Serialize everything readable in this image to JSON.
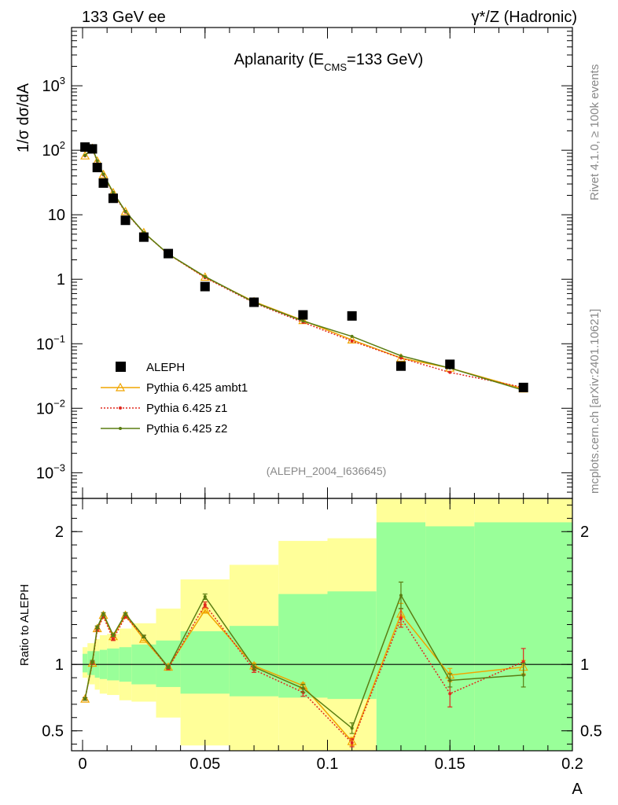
{
  "header": {
    "left": "133 GeV ee",
    "right": "γ*/Z (Hadronic)"
  },
  "side_labels": {
    "rivet": "Rivet 4.1.0, ≥ 100k events",
    "mcplots": "mcplots.cern.ch [arXiv:2401.10621]"
  },
  "colors": {
    "data": "#000000",
    "ambt1": "#f0a500",
    "z1": "#e0281e",
    "z2": "#5a7d12",
    "band_outer": "#ffff99",
    "band_inner": "#99ff99"
  },
  "chart_data": [
    {
      "type": "line",
      "title": "Aplanarity (E",
      "title_sub": "CMS",
      "title_end": "=133 GeV)",
      "ylabel": "1/σ  dσ/dA",
      "yscale": "log",
      "ylim": [
        0.0004,
        8000
      ],
      "xlim": [
        -0.0045,
        0.2
      ],
      "analysis_id": "(ALEPH_2004_I636645)",
      "y_ticks": [
        {
          "value": 0.001,
          "label": "10",
          "exp": "−3"
        },
        {
          "value": 0.01,
          "label": "10",
          "exp": "−2"
        },
        {
          "value": 0.1,
          "label": "10",
          "exp": "−1"
        },
        {
          "value": 1,
          "label": "1",
          "exp": ""
        },
        {
          "value": 10,
          "label": "10",
          "exp": ""
        },
        {
          "value": 100,
          "label": "10",
          "exp": "2"
        },
        {
          "value": 1000,
          "label": "10",
          "exp": "3"
        }
      ],
      "legend": [
        {
          "key": "data",
          "label": "ALEPH"
        },
        {
          "key": "ambt1",
          "label": "Pythia 6.425 ambt1"
        },
        {
          "key": "z1",
          "label": "Pythia 6.425 z1"
        },
        {
          "key": "z2",
          "label": "Pythia 6.425 z2"
        }
      ],
      "x": [
        0.001,
        0.004,
        0.006,
        0.0085,
        0.0125,
        0.0175,
        0.025,
        0.035,
        0.05,
        0.07,
        0.09,
        0.11,
        0.13,
        0.15,
        0.18
      ],
      "series": [
        {
          "name": "ALEPH",
          "key": "data",
          "values": [
            112,
            105,
            54,
            31,
            18,
            8.2,
            4.5,
            2.5,
            0.77,
            0.44,
            0.28,
            0.27,
            0.045,
            0.048,
            0.021
          ]
        },
        {
          "name": "Pythia 6.425 ambt1",
          "key": "ambt1",
          "values": [
            82,
            107,
            68,
            42,
            22,
            11.2,
            5.3,
            2.45,
            1.08,
            0.45,
            0.23,
            0.115,
            0.06,
            0.042,
            0.02
          ]
        },
        {
          "name": "Pythia 6.425 z1",
          "key": "z1",
          "values": [
            82,
            107,
            67,
            41.5,
            21.5,
            11.0,
            5.25,
            2.45,
            1.06,
            0.43,
            0.215,
            0.11,
            0.06,
            0.036,
            0.021
          ]
        },
        {
          "name": "Pythia 6.425 z2",
          "key": "z2",
          "values": [
            83,
            108,
            68.5,
            42.5,
            22.2,
            11.3,
            5.3,
            2.46,
            1.1,
            0.44,
            0.225,
            0.13,
            0.065,
            0.042,
            0.019
          ]
        }
      ]
    },
    {
      "type": "line",
      "title": "",
      "ylabel": "Ratio to ALEPH",
      "xlabel": "A",
      "yscale": "linear",
      "ylim": [
        0.35,
        2.25
      ],
      "xlim": [
        -0.0045,
        0.2
      ],
      "y_ticks": [
        0.5,
        1,
        2
      ],
      "y_tick_labels": [
        "0.5",
        "1",
        "2"
      ],
      "x_ticks": [
        0,
        0.05,
        0.1,
        0.15,
        0.2
      ],
      "x_tick_labels": [
        "0",
        "0.05",
        "0.1",
        "0.15",
        "0.2"
      ],
      "reference": 1,
      "bands": [
        {
          "x0": 0,
          "x1": 0.002,
          "inner": [
            0.94,
            1.08
          ],
          "outer": [
            0.9,
            1.13
          ]
        },
        {
          "x0": 0.002,
          "x1": 0.005,
          "inner": [
            0.92,
            1.1
          ],
          "outer": [
            0.85,
            1.16
          ]
        },
        {
          "x0": 0.005,
          "x1": 0.007,
          "inner": [
            0.9,
            1.1
          ],
          "outer": [
            0.81,
            1.19
          ]
        },
        {
          "x0": 0.007,
          "x1": 0.01,
          "inner": [
            0.89,
            1.11
          ],
          "outer": [
            0.78,
            1.22
          ]
        },
        {
          "x0": 0.01,
          "x1": 0.015,
          "inner": [
            0.88,
            1.12
          ],
          "outer": [
            0.77,
            1.23
          ]
        },
        {
          "x0": 0.015,
          "x1": 0.02,
          "inner": [
            0.87,
            1.13
          ],
          "outer": [
            0.73,
            1.27
          ]
        },
        {
          "x0": 0.02,
          "x1": 0.03,
          "inner": [
            0.85,
            1.15
          ],
          "outer": [
            0.72,
            1.31
          ]
        },
        {
          "x0": 0.03,
          "x1": 0.04,
          "inner": [
            0.83,
            1.18
          ],
          "outer": [
            0.6,
            1.42
          ]
        },
        {
          "x0": 0.04,
          "x1": 0.06,
          "inner": [
            0.78,
            1.25
          ],
          "outer": [
            0.39,
            1.64
          ]
        },
        {
          "x0": 0.06,
          "x1": 0.08,
          "inner": [
            0.76,
            1.29
          ],
          "outer": [
            0.35,
            1.75
          ]
        },
        {
          "x0": 0.08,
          "x1": 0.1,
          "inner": [
            0.75,
            1.53
          ],
          "outer": [
            0.35,
            1.93
          ]
        },
        {
          "x0": 0.1,
          "x1": 0.12,
          "inner": [
            0.74,
            1.55
          ],
          "outer": [
            0.35,
            1.95
          ]
        },
        {
          "x0": 0.12,
          "x1": 0.14,
          "inner": [
            0.35,
            2.07
          ],
          "outer": [
            0.35,
            2.28
          ]
        },
        {
          "x0": 0.14,
          "x1": 0.16,
          "inner": [
            0.35,
            2.04
          ],
          "outer": [
            0.35,
            2.28
          ]
        },
        {
          "x0": 0.16,
          "x1": 0.2,
          "inner": [
            0.35,
            2.07
          ],
          "outer": [
            0.35,
            2.28
          ]
        }
      ],
      "x": [
        0.001,
        0.004,
        0.006,
        0.0085,
        0.0125,
        0.0175,
        0.025,
        0.035,
        0.05,
        0.07,
        0.09,
        0.11,
        0.13,
        0.15,
        0.18
      ],
      "series": [
        {
          "name": "Pythia 6.425 ambt1",
          "key": "ambt1",
          "values": [
            0.74,
            1.01,
            1.27,
            1.37,
            1.21,
            1.37,
            1.19,
            0.98,
            1.41,
            0.99,
            0.84,
            0.42,
            1.38,
            0.92,
            0.98
          ],
          "errors": [
            0.01,
            0.01,
            0.01,
            0.01,
            0.01,
            0.01,
            0.01,
            0.01,
            0.02,
            0.02,
            0.02,
            0.03,
            0.08,
            0.05,
            0.05
          ]
        },
        {
          "name": "Pythia 6.425 z1",
          "key": "z1",
          "values": [
            0.74,
            1.01,
            1.26,
            1.36,
            1.19,
            1.36,
            1.21,
            0.97,
            1.45,
            0.96,
            0.79,
            0.41,
            1.35,
            0.78,
            1.02
          ],
          "errors": [
            0.01,
            0.01,
            0.01,
            0.01,
            0.01,
            0.01,
            0.01,
            0.01,
            0.02,
            0.02,
            0.03,
            0.03,
            0.07,
            0.1,
            0.1
          ]
        },
        {
          "name": "Pythia 6.425 z2",
          "key": "z2",
          "values": [
            0.74,
            1.02,
            1.28,
            1.38,
            1.22,
            1.38,
            1.21,
            0.98,
            1.51,
            0.98,
            0.82,
            0.52,
            1.52,
            0.88,
            0.92
          ],
          "errors": [
            0.01,
            0.01,
            0.01,
            0.01,
            0.01,
            0.01,
            0.01,
            0.01,
            0.02,
            0.02,
            0.03,
            0.04,
            0.1,
            0.05,
            0.09
          ]
        }
      ]
    }
  ]
}
